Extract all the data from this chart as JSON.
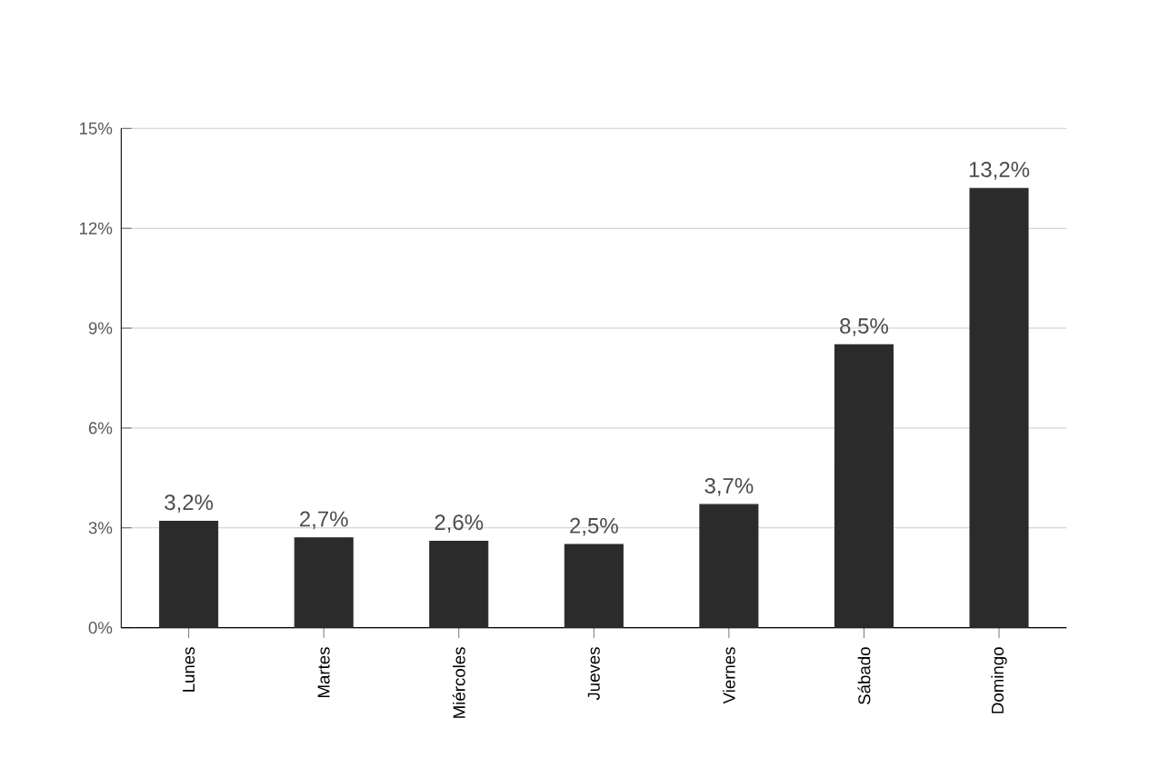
{
  "chart_data": {
    "type": "bar",
    "categories": [
      "Lunes",
      "Martes",
      "Miércoles",
      "Jueves",
      "Viernes",
      "Sábado",
      "Domingo"
    ],
    "values": [
      3.2,
      2.7,
      2.6,
      2.5,
      3.7,
      8.5,
      13.2
    ],
    "value_labels": [
      "3,2%",
      "2,7%",
      "2,6%",
      "2,5%",
      "3,7%",
      "8,5%",
      "13,2%"
    ],
    "color": "#2b2b2b",
    "ylim": [
      0,
      15
    ],
    "yticks": [
      {
        "value": 0,
        "label": "0%"
      },
      {
        "value": 3,
        "label": "3%"
      },
      {
        "value": 6,
        "label": "6%"
      },
      {
        "value": 9,
        "label": "9%"
      },
      {
        "value": 12,
        "label": "12%"
      },
      {
        "value": 15,
        "label": "15%"
      }
    ],
    "grid": "y"
  }
}
